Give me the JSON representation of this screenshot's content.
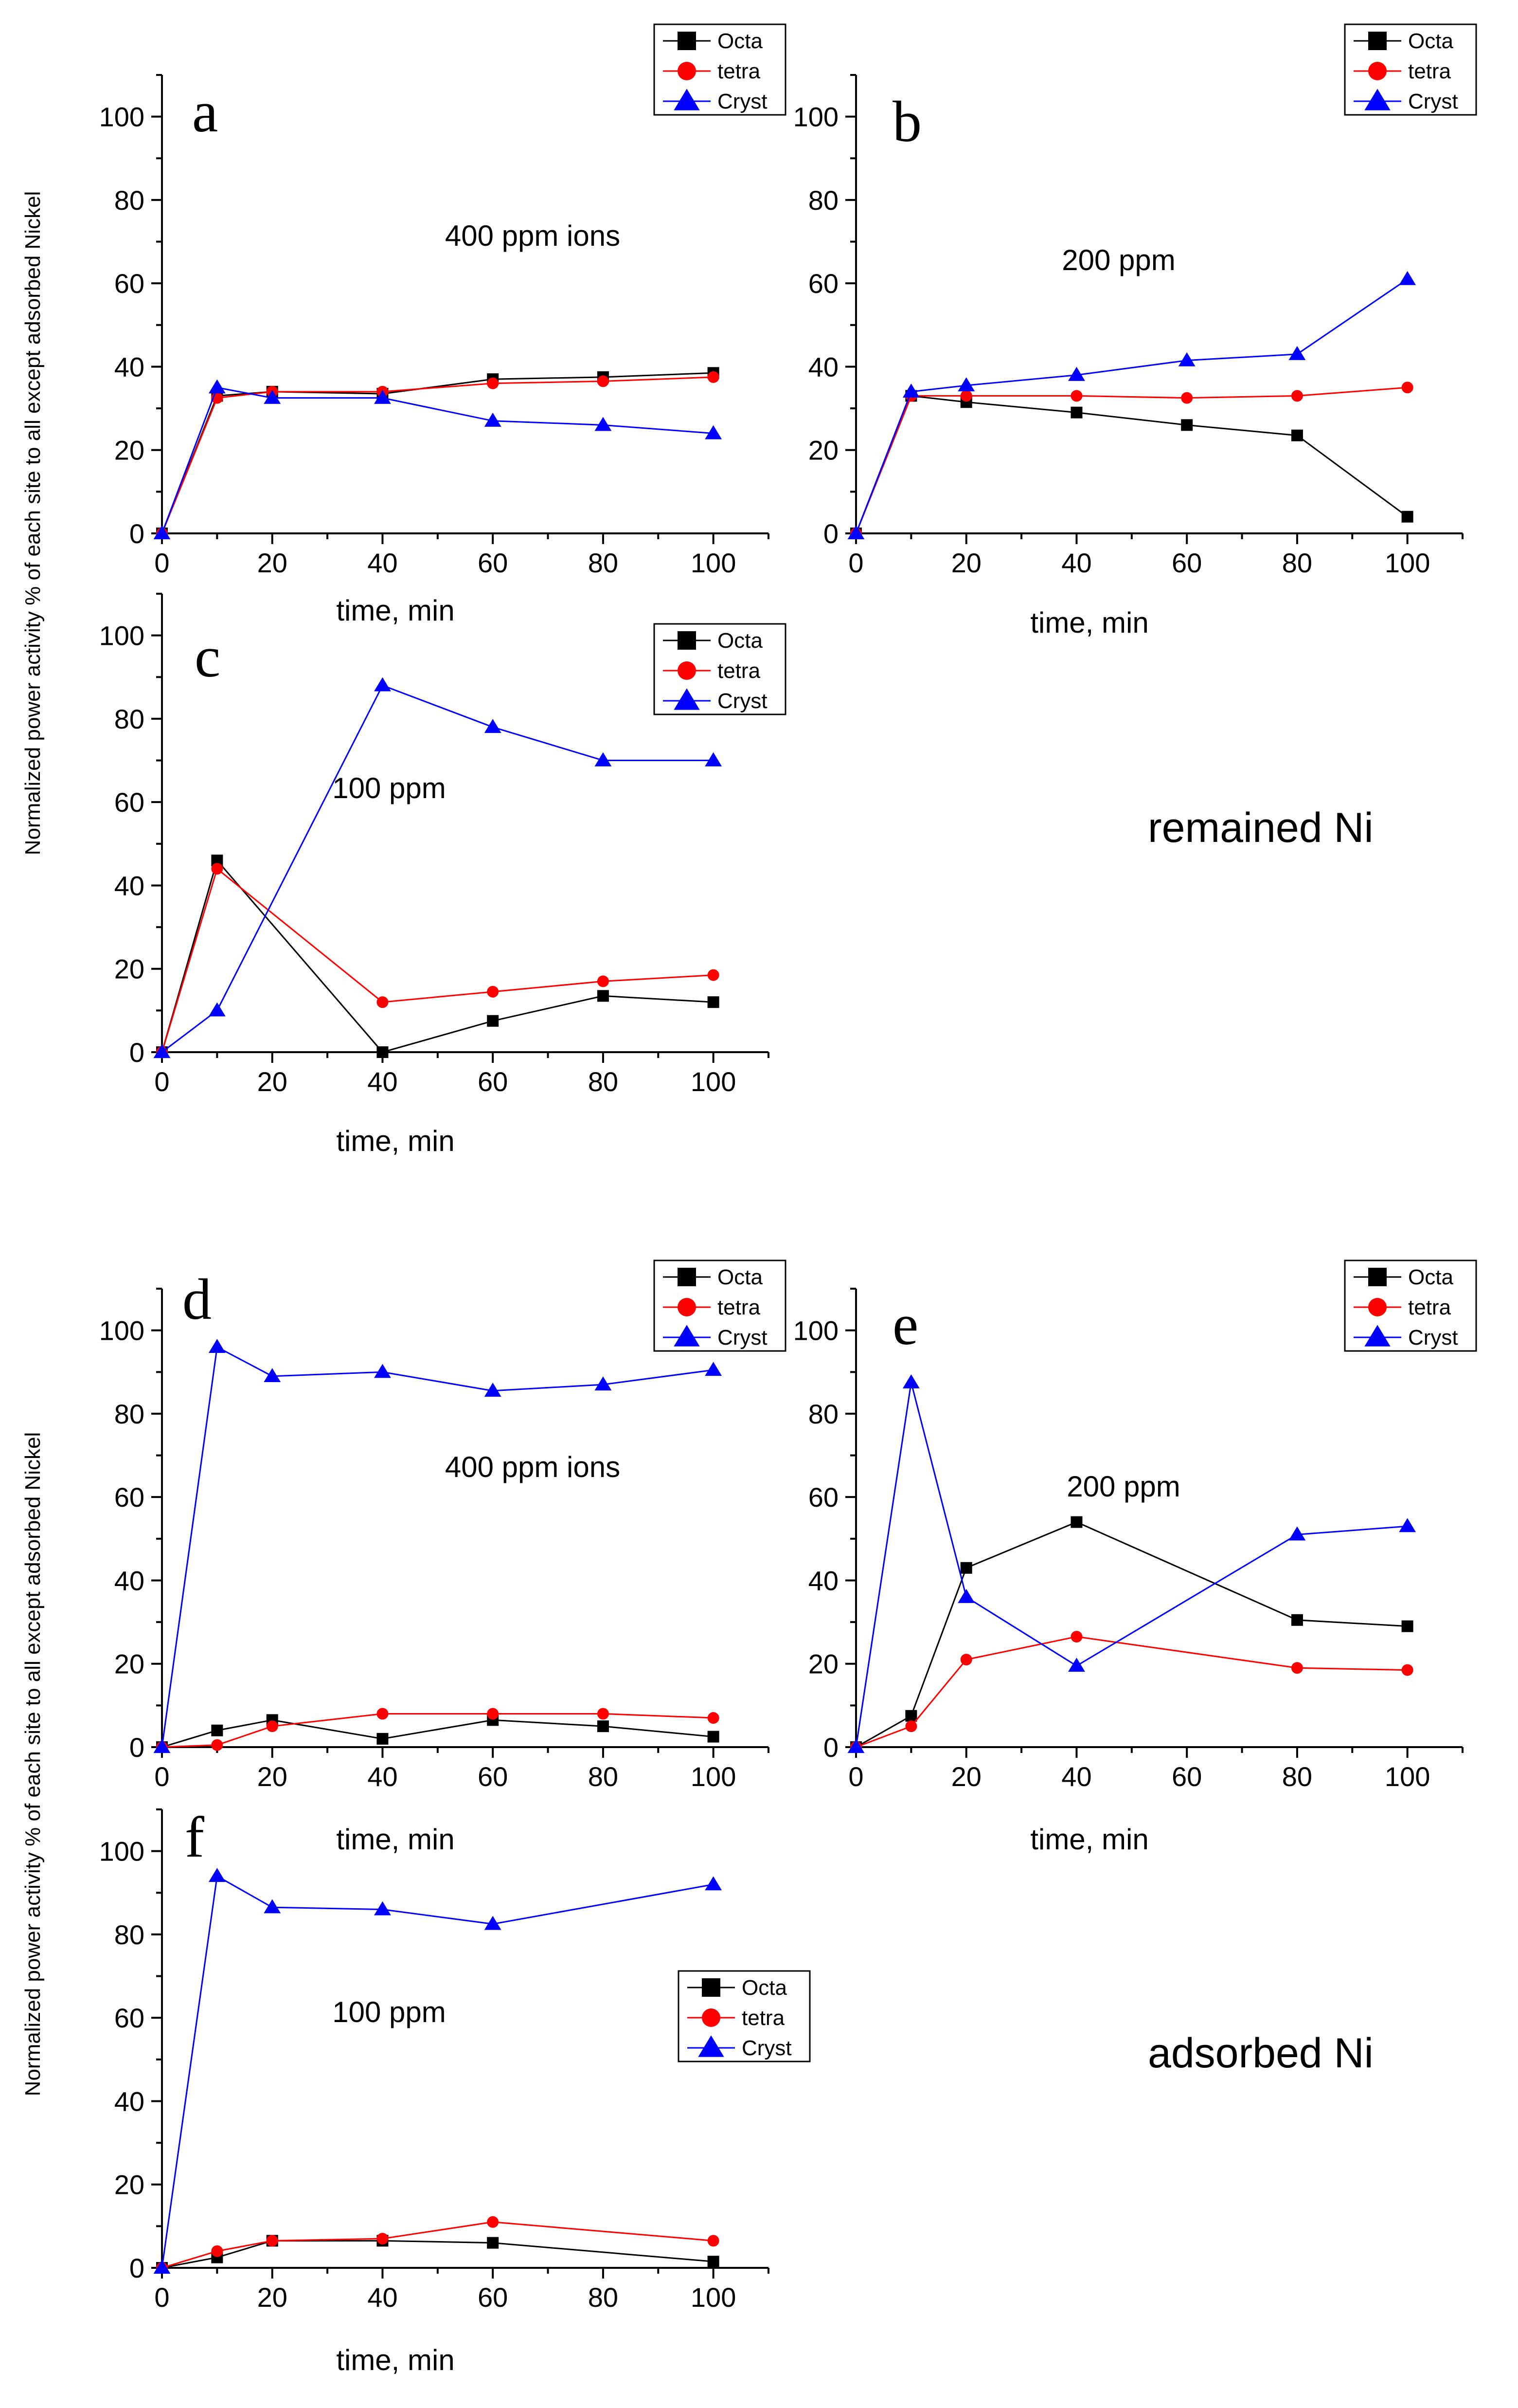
{
  "figure": {
    "y_axis_label": "Normalized power activity  % of  each site to all except adsorbed Nickel",
    "group_labels": {
      "remained": "remained Ni",
      "adsorbed": "adsorbed Ni"
    },
    "series_styles": [
      {
        "name": "Octa",
        "color": "#000000",
        "marker": "square"
      },
      {
        "name": "tetra",
        "color": "#ff0000",
        "marker": "circle"
      },
      {
        "name": "Cryst",
        "color": "#0000ff",
        "marker": "triangle"
      }
    ]
  },
  "chart_data": [
    {
      "panel": "a",
      "type": "line",
      "annotation": "400 ppm ions",
      "xlabel": "time, min",
      "ylabel": "Normalized power activity  % of  each site to all except adsorbed Nickel",
      "xlim": [
        0,
        110
      ],
      "ylim": [
        0,
        110
      ],
      "xticks": [
        0,
        20,
        40,
        60,
        80,
        100
      ],
      "yticks": [
        0,
        20,
        40,
        60,
        80,
        100
      ],
      "x": [
        0,
        10,
        20,
        40,
        60,
        80,
        100
      ],
      "series": [
        {
          "name": "Octa",
          "values": [
            0,
            33,
            34,
            33.5,
            37,
            37.5,
            38.5
          ]
        },
        {
          "name": "tetra",
          "values": [
            0,
            32.5,
            34,
            34,
            36,
            36.5,
            37.5
          ]
        },
        {
          "name": "Cryst",
          "values": [
            0,
            35,
            32.5,
            32.5,
            27,
            26,
            24
          ]
        }
      ]
    },
    {
      "panel": "b",
      "type": "line",
      "annotation": "200 ppm",
      "xlabel": "time, min",
      "ylabel": "",
      "xlim": [
        0,
        110
      ],
      "ylim": [
        0,
        110
      ],
      "xticks": [
        0,
        20,
        40,
        60,
        80,
        100
      ],
      "yticks": [
        0,
        20,
        40,
        60,
        80,
        100
      ],
      "x": [
        0,
        10,
        20,
        40,
        60,
        80,
        100
      ],
      "series": [
        {
          "name": "Octa",
          "values": [
            0,
            33,
            31.5,
            29,
            26,
            23.5,
            4
          ]
        },
        {
          "name": "tetra",
          "values": [
            0,
            33,
            33,
            33,
            32.5,
            33,
            35
          ]
        },
        {
          "name": "Cryst",
          "values": [
            0,
            34,
            35.5,
            38,
            41.5,
            43,
            61
          ]
        }
      ]
    },
    {
      "panel": "c",
      "type": "line",
      "annotation": "100 ppm",
      "xlabel": "time, min",
      "ylabel": "",
      "xlim": [
        0,
        110
      ],
      "ylim": [
        0,
        110
      ],
      "xticks": [
        0,
        20,
        40,
        60,
        80,
        100
      ],
      "yticks": [
        0,
        20,
        40,
        60,
        80,
        100
      ],
      "x": [
        0,
        10,
        40,
        60,
        80,
        100
      ],
      "series": [
        {
          "name": "Octa",
          "values": [
            0,
            46,
            0,
            7.5,
            13.5,
            12
          ]
        },
        {
          "name": "tetra",
          "values": [
            0,
            44,
            12,
            14.5,
            17,
            18.5
          ]
        },
        {
          "name": "Cryst",
          "values": [
            0,
            10,
            88,
            78,
            70,
            70
          ]
        }
      ]
    },
    {
      "panel": "d",
      "type": "line",
      "annotation": "400 ppm  ions",
      "xlabel": "time, min",
      "ylabel": "",
      "xlim": [
        0,
        110
      ],
      "ylim": [
        0,
        110
      ],
      "xticks": [
        0,
        20,
        40,
        60,
        80,
        100
      ],
      "yticks": [
        0,
        20,
        40,
        60,
        80,
        100
      ],
      "x": [
        0,
        10,
        20,
        40,
        60,
        80,
        100
      ],
      "series": [
        {
          "name": "Octa",
          "values": [
            0,
            4,
            6.5,
            2,
            6.5,
            5,
            2.5
          ]
        },
        {
          "name": "tetra",
          "values": [
            0,
            0.5,
            5,
            8,
            8,
            8,
            7
          ]
        },
        {
          "name": "Cryst",
          "values": [
            0,
            96,
            89,
            90,
            85.5,
            87,
            90.5
          ]
        }
      ]
    },
    {
      "panel": "e",
      "type": "line",
      "annotation": "200 ppm",
      "xlabel": "time, min",
      "ylabel": "",
      "xlim": [
        0,
        110
      ],
      "ylim": [
        0,
        110
      ],
      "xticks": [
        0,
        20,
        40,
        60,
        80,
        100
      ],
      "yticks": [
        0,
        20,
        40,
        60,
        80,
        100
      ],
      "x": [
        0,
        10,
        20,
        40,
        80,
        100
      ],
      "series": [
        {
          "name": "Octa",
          "values": [
            0,
            7.5,
            43,
            54,
            30.5,
            29
          ]
        },
        {
          "name": "tetra",
          "values": [
            0,
            5,
            21,
            26.5,
            19,
            18.5
          ]
        },
        {
          "name": "Cryst",
          "values": [
            0,
            87.5,
            36,
            19.5,
            51,
            53
          ]
        }
      ]
    },
    {
      "panel": "f",
      "type": "line",
      "annotation": "100 ppm",
      "xlabel": "time, min",
      "ylabel": "",
      "xlim": [
        0,
        110
      ],
      "ylim": [
        0,
        110
      ],
      "xticks": [
        0,
        20,
        40,
        60,
        80,
        100
      ],
      "yticks": [
        0,
        20,
        40,
        60,
        80,
        100
      ],
      "x": [
        0,
        10,
        20,
        40,
        60,
        100
      ],
      "series": [
        {
          "name": "Octa",
          "values": [
            0,
            2.5,
            6.5,
            6.5,
            6,
            1.5
          ]
        },
        {
          "name": "tetra",
          "values": [
            0,
            4,
            6.5,
            7,
            11,
            6.5
          ]
        },
        {
          "name": "Cryst",
          "values": [
            0,
            94,
            86.5,
            86,
            82.5,
            92
          ]
        }
      ]
    }
  ]
}
